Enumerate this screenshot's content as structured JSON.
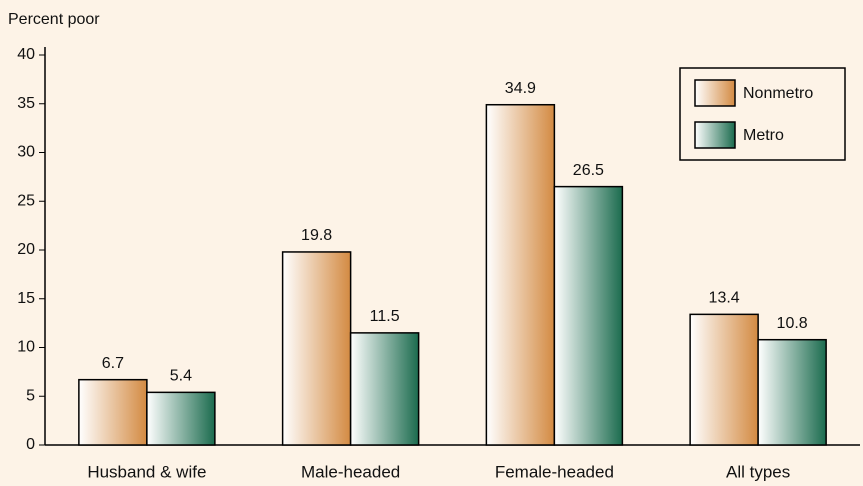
{
  "chart_data": {
    "type": "bar",
    "y_label": "Percent poor",
    "categories": [
      "Husband & wife",
      "Male-headed",
      "Female-headed",
      "All types"
    ],
    "series": [
      {
        "name": "Nonmetro",
        "color": "#d38a42",
        "values": [
          6.7,
          19.8,
          34.9,
          13.4
        ]
      },
      {
        "name": "Metro",
        "color": "#1b6b4e",
        "values": [
          5.4,
          11.5,
          26.5,
          10.8
        ]
      }
    ],
    "ylim": [
      0,
      40
    ],
    "yticks": [
      0,
      5,
      10,
      15,
      20,
      25,
      30,
      35,
      40
    ],
    "grid": false,
    "legend": "upper right"
  }
}
